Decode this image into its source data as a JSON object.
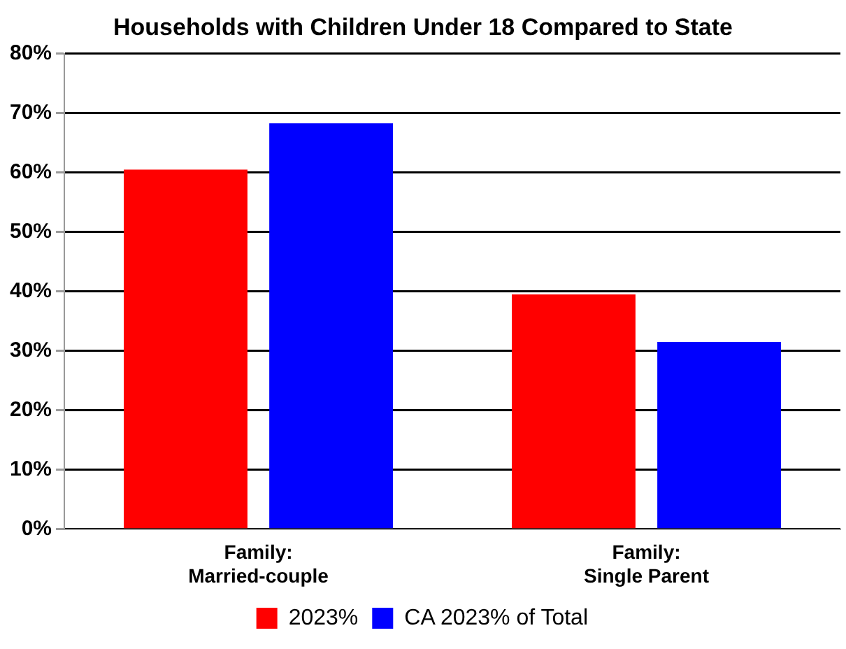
{
  "chart_data": {
    "type": "bar",
    "title": "Households with Children Under 18 Compared to State",
    "categories": [
      "Family:\nMarried-couple",
      "Family:\nSingle Parent"
    ],
    "series": [
      {
        "name": "2023%",
        "color": "#ff0000",
        "values": [
          60.5,
          39.5
        ]
      },
      {
        "name": "CA 2023% of Total",
        "color": "#0000ff",
        "values": [
          68.3,
          31.5
        ]
      }
    ],
    "ylim": [
      0,
      80
    ],
    "yticks": [
      {
        "value": 0,
        "label": "0%"
      },
      {
        "value": 10,
        "label": "10%"
      },
      {
        "value": 20,
        "label": "20%"
      },
      {
        "value": 30,
        "label": "30%"
      },
      {
        "value": 40,
        "label": "40%"
      },
      {
        "value": 50,
        "label": "50%"
      },
      {
        "value": 60,
        "label": "60%"
      },
      {
        "value": 70,
        "label": "70%"
      },
      {
        "value": 80,
        "label": "80%"
      }
    ],
    "grid": "y",
    "legend": "bottom"
  }
}
